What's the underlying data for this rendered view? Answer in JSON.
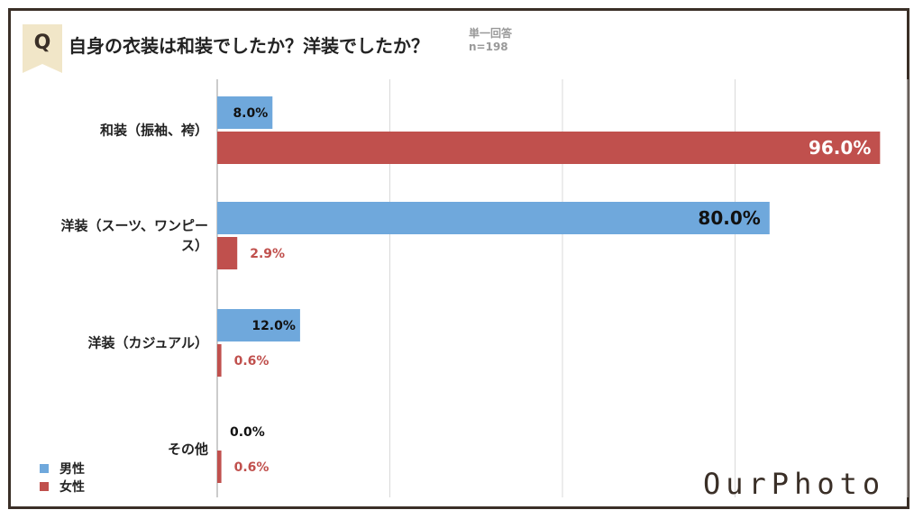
{
  "header": {
    "q_badge": "Q",
    "question": "自身の衣装は和装でしたか？洋装でしたか？",
    "answer_type": "単一回答",
    "sample": "n=198"
  },
  "legend": {
    "male": "男性",
    "female": "女性"
  },
  "logo": "OurPhoto",
  "colors": {
    "male": "#6fa8dc",
    "female": "#c0504d",
    "frame": "#3a2f27",
    "badge": "#f1e6c8"
  },
  "chart_data": {
    "type": "bar",
    "orientation": "horizontal",
    "categories": [
      "和装（振袖、袴）",
      "洋装（スーツ、ワンピース）",
      "洋装（カジュアル）",
      "その他"
    ],
    "series": [
      {
        "name": "男性",
        "values": [
          8.0,
          80.0,
          12.0,
          0.0
        ],
        "labels": [
          "8.0%",
          "80.0%",
          "12.0%",
          "0.0%"
        ]
      },
      {
        "name": "女性",
        "values": [
          96.0,
          2.9,
          0.6,
          0.6
        ],
        "labels": [
          "96.0%",
          "2.9%",
          "0.6%",
          "0.6%"
        ]
      }
    ],
    "xlim": [
      0,
      100
    ],
    "grid": true,
    "legend_position": "bottom-left",
    "unit": "%"
  }
}
